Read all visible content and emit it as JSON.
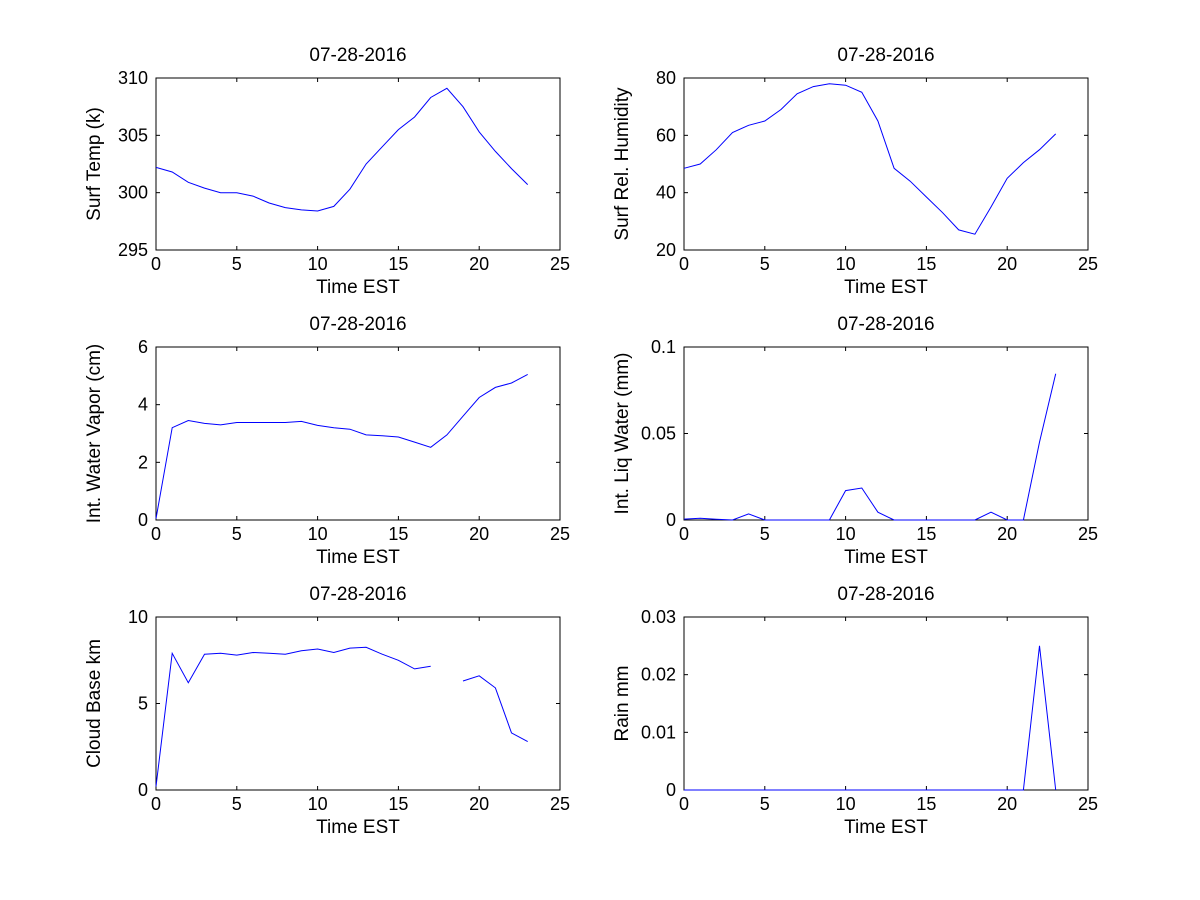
{
  "chart_data": [
    {
      "type": "line",
      "title": "07-28-2016",
      "xlabel": "Time EST",
      "ylabel": "Surf Temp (k)",
      "xlim": [
        0,
        25
      ],
      "ylim": [
        295,
        310
      ],
      "xticks": [
        0,
        5,
        10,
        15,
        20,
        25
      ],
      "yticks": [
        295,
        300,
        305,
        310
      ],
      "xticklabels": [
        "0",
        "5",
        "10",
        "15",
        "20",
        "25"
      ],
      "yticklabels": [
        "295",
        "300",
        "305",
        "310"
      ],
      "grid": false,
      "series": [
        {
          "color": "#0000ff",
          "x": [
            0,
            1,
            2,
            3,
            4,
            5,
            6,
            7,
            8,
            9,
            10,
            11,
            12,
            13,
            14,
            15,
            16,
            17,
            18,
            19,
            20,
            21,
            22,
            23
          ],
          "y": [
            302.2,
            301.8,
            300.9,
            300.4,
            300.0,
            300.0,
            299.7,
            299.1,
            298.7,
            298.5,
            298.4,
            298.8,
            300.3,
            302.5,
            304.0,
            305.5,
            306.6,
            308.3,
            309.1,
            307.5,
            305.3,
            303.6,
            302.1,
            300.7
          ]
        }
      ]
    },
    {
      "type": "line",
      "title": "07-28-2016",
      "xlabel": "Time EST",
      "ylabel": "Surf Rel. Humidity",
      "xlim": [
        0,
        25
      ],
      "ylim": [
        20,
        80
      ],
      "xticks": [
        0,
        5,
        10,
        15,
        20,
        25
      ],
      "yticks": [
        20,
        40,
        60,
        80
      ],
      "xticklabels": [
        "0",
        "5",
        "10",
        "15",
        "20",
        "25"
      ],
      "yticklabels": [
        "20",
        "40",
        "60",
        "80"
      ],
      "grid": false,
      "series": [
        {
          "color": "#0000ff",
          "x": [
            0,
            1,
            2,
            3,
            4,
            5,
            6,
            7,
            8,
            9,
            10,
            11,
            12,
            13,
            14,
            15,
            16,
            17,
            18,
            19,
            20,
            21,
            22,
            23
          ],
          "y": [
            48.5,
            50,
            55,
            61,
            63.5,
            65,
            69,
            74.5,
            77,
            78,
            77.5,
            75,
            65,
            48.5,
            44,
            38.5,
            33,
            27,
            25.5,
            35,
            45,
            50.5,
            55,
            60.5
          ]
        }
      ]
    },
    {
      "type": "line",
      "title": "07-28-2016",
      "xlabel": "Time EST",
      "ylabel": "Int. Water Vapor (cm)",
      "xlim": [
        0,
        25
      ],
      "ylim": [
        0,
        6
      ],
      "xticks": [
        0,
        5,
        10,
        15,
        20,
        25
      ],
      "yticks": [
        0,
        2,
        4,
        6
      ],
      "xticklabels": [
        "0",
        "5",
        "10",
        "15",
        "20",
        "25"
      ],
      "yticklabels": [
        "0",
        "2",
        "4",
        "6"
      ],
      "grid": false,
      "series": [
        {
          "color": "#0000ff",
          "x": [
            0,
            1,
            2,
            3,
            4,
            5,
            6,
            7,
            8,
            9,
            10,
            11,
            12,
            13,
            14,
            15,
            16,
            17,
            18,
            19,
            20,
            21,
            22,
            23
          ],
          "y": [
            0.05,
            3.2,
            3.45,
            3.35,
            3.3,
            3.38,
            3.38,
            3.38,
            3.38,
            3.42,
            3.28,
            3.2,
            3.15,
            2.95,
            2.92,
            2.88,
            2.7,
            2.52,
            2.95,
            3.6,
            4.25,
            4.6,
            4.75,
            5.05
          ]
        }
      ]
    },
    {
      "type": "line",
      "title": "07-28-2016",
      "xlabel": "Time EST",
      "ylabel": "Int. Liq Water (mm)",
      "xlim": [
        0,
        25
      ],
      "ylim": [
        0,
        0.1
      ],
      "xticks": [
        0,
        5,
        10,
        15,
        20,
        25
      ],
      "yticks": [
        0,
        0.05,
        0.1
      ],
      "xticklabels": [
        "0",
        "5",
        "10",
        "15",
        "20",
        "25"
      ],
      "yticklabels": [
        "0",
        "0.05",
        "0.1"
      ],
      "grid": false,
      "series": [
        {
          "color": "#0000ff",
          "x": [
            0,
            1,
            2,
            3,
            4,
            5,
            6,
            7,
            8,
            9,
            10,
            11,
            12,
            13,
            14,
            15,
            16,
            17,
            18,
            19,
            20,
            21,
            22,
            23
          ],
          "y": [
            0.0005,
            0.001,
            0.0004,
            0,
            0.0035,
            0,
            0,
            0,
            0,
            0,
            0.017,
            0.0185,
            0.0045,
            0,
            0,
            0,
            0,
            0,
            0,
            0.0045,
            0,
            0,
            0.045,
            0.0845
          ]
        }
      ]
    },
    {
      "type": "line",
      "title": "07-28-2016",
      "xlabel": "Time EST",
      "ylabel": "Cloud Base km",
      "xlim": [
        0,
        25
      ],
      "ylim": [
        0,
        10
      ],
      "xticks": [
        0,
        5,
        10,
        15,
        20,
        25
      ],
      "yticks": [
        0,
        5,
        10
      ],
      "xticklabels": [
        "0",
        "5",
        "10",
        "15",
        "20",
        "25"
      ],
      "yticklabels": [
        "0",
        "5",
        "10"
      ],
      "grid": false,
      "series": [
        {
          "color": "#0000ff",
          "x": [
            0,
            1,
            2,
            3,
            4,
            5,
            6,
            7,
            8,
            9,
            10,
            11,
            12,
            13,
            14,
            15,
            16,
            17,
            18,
            19,
            20,
            21,
            22,
            23
          ],
          "y": [
            0.2,
            7.9,
            6.2,
            7.85,
            7.9,
            7.8,
            7.95,
            7.9,
            7.85,
            8.05,
            8.15,
            7.95,
            8.2,
            8.25,
            7.85,
            7.5,
            7.0,
            7.15,
            null,
            6.3,
            6.6,
            5.9,
            3.3,
            2.8
          ]
        }
      ]
    },
    {
      "type": "line",
      "title": "07-28-2016",
      "xlabel": "Time EST",
      "ylabel": "Rain mm",
      "xlim": [
        0,
        25
      ],
      "ylim": [
        0,
        0.03
      ],
      "xticks": [
        0,
        5,
        10,
        15,
        20,
        25
      ],
      "yticks": [
        0,
        0.01,
        0.02,
        0.03
      ],
      "xticklabels": [
        "0",
        "5",
        "10",
        "15",
        "20",
        "25"
      ],
      "yticklabels": [
        "0",
        "0.01",
        "0.02",
        "0.03"
      ],
      "grid": false,
      "series": [
        {
          "color": "#0000ff",
          "x": [
            0,
            1,
            2,
            3,
            4,
            5,
            6,
            7,
            8,
            9,
            10,
            11,
            12,
            13,
            14,
            15,
            16,
            17,
            18,
            19,
            20,
            21,
            22,
            23
          ],
          "y": [
            0,
            0,
            0,
            0,
            0,
            0,
            0,
            0,
            0,
            0,
            0,
            0,
            0,
            0,
            0,
            0,
            0,
            0,
            0,
            0,
            0,
            0,
            0.025,
            0
          ]
        }
      ]
    }
  ]
}
